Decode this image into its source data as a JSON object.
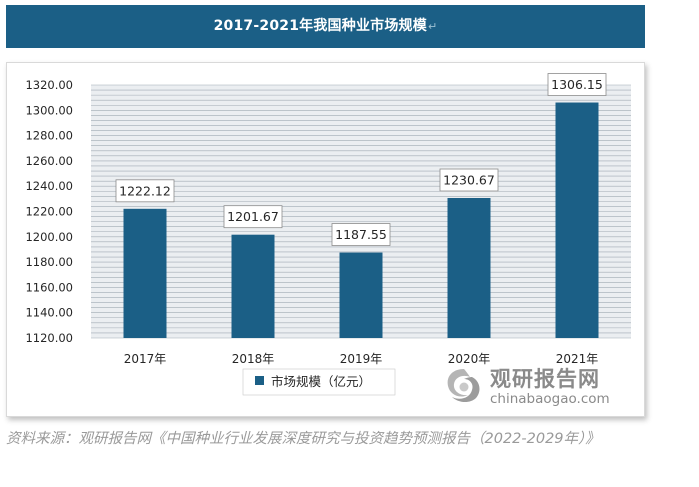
{
  "header": {
    "title": "2017-2021年我国种业市场规模",
    "para_mark": "↵"
  },
  "chart_data": {
    "type": "bar",
    "title": "2017-2021年我国种业市场规模",
    "categories": [
      "2017年",
      "2018年",
      "2019年",
      "2020年",
      "2021年"
    ],
    "series": [
      {
        "name": "市场规模（亿元）",
        "values": [
          1222.12,
          1201.67,
          1187.55,
          1230.67,
          1306.15
        ],
        "color": "#1b5f86"
      }
    ],
    "data_labels": [
      "1222.12",
      "1201.67",
      "1187.55",
      "1230.67",
      "1306.15"
    ],
    "y_ticks": [
      "1120.00",
      "1140.00",
      "1160.00",
      "1180.00",
      "1200.00",
      "1220.00",
      "1240.00",
      "1260.00",
      "1280.00",
      "1300.00",
      "1320.00"
    ],
    "ylim": [
      1120,
      1320
    ],
    "grid": true,
    "gridline_color": "#a0aab4",
    "plot_background": "#ebeef1",
    "legend_position": "bottom-center",
    "xlabel": "",
    "ylabel": ""
  },
  "watermark": {
    "name": "观研报告网",
    "url": "chinabaogao.com",
    "logo_icon": "swirl-logo-icon"
  },
  "source": {
    "text": "资料来源：观研报告网《中国种业行业发展深度研究与投资趋势预测报告（2022-2029年）》"
  }
}
